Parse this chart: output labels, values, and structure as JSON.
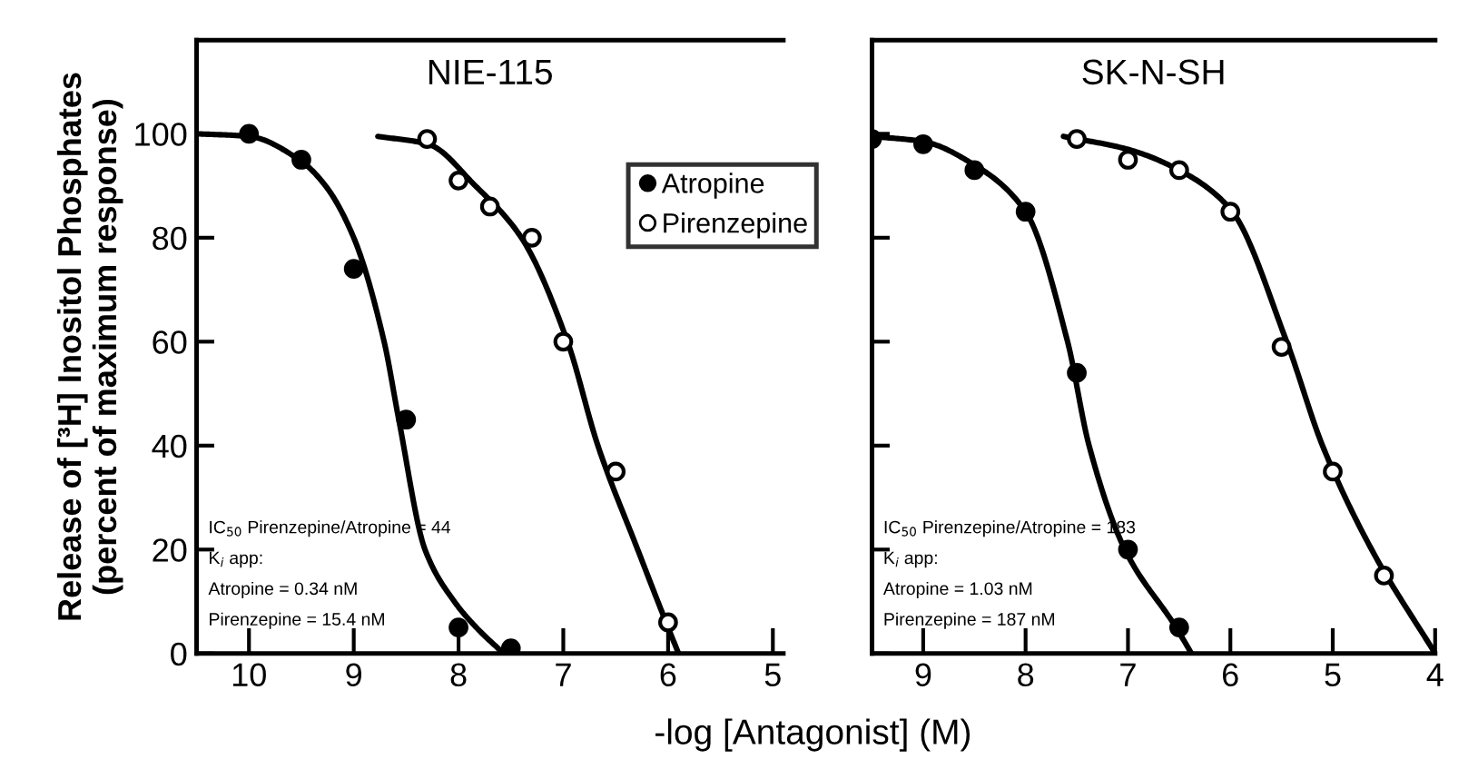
{
  "chart_data": [
    {
      "type": "scatter",
      "title": "NIE-115",
      "ylabel": "Release of [³H] Inositol Phosphates\n(percent of maximum response)",
      "xlabel": "-log [Antagonist] (M)",
      "xlim": [
        10.5,
        4.9
      ],
      "xticks": [
        10,
        9,
        8,
        7,
        6,
        5
      ],
      "ylim": [
        0,
        118
      ],
      "yticks": [
        0,
        20,
        40,
        60,
        80,
        100
      ],
      "grid": false,
      "legend": "top right",
      "annotations": [
        "IC$_{50}$ Pirenzepine/Atropine = 44",
        "K$_{i}$ app:",
        "Atropine = 0.34 nM",
        "Pirenzepine = 15.4 nM"
      ],
      "series": [
        {
          "name": "Atropine",
          "marker": "circle",
          "color": "#000000",
          "x": [
            10.0,
            9.5,
            9.0,
            8.5,
            8.0,
            7.5
          ],
          "values": [
            100,
            95,
            74,
            45,
            5,
            1
          ]
        },
        {
          "name": "Pirenzepine",
          "marker": "circle",
          "color": "#ffffff",
          "x": [
            8.3,
            8.0,
            7.7,
            7.3,
            7.0,
            6.5,
            6.0
          ],
          "values": [
            99,
            91,
            86,
            80,
            60,
            35,
            6
          ]
        },
        {
          "type": "line",
          "marker": "none",
          "line_style": "solid",
          "color": "#000000",
          "x": [
            10.5,
            10.0,
            9.52,
            9.27,
            9.0,
            8.71,
            8.57,
            8.32,
            8.04,
            7.83,
            7.57
          ],
          "values": [
            100,
            99.5,
            95,
            90,
            80,
            60,
            45,
            20,
            10,
            5,
            0
          ]
        },
        {
          "type": "line",
          "marker": "none",
          "line_style": "solid",
          "color": "#000000",
          "x": [
            8.77,
            8.29,
            7.84,
            7.4,
            6.96,
            6.67,
            6.29,
            6.0,
            5.9
          ],
          "values": [
            99.5,
            98,
            90,
            80,
            60,
            40,
            20,
            5,
            0
          ]
        }
      ]
    },
    {
      "type": "scatter",
      "title": "SK-N-SH",
      "xlim": [
        9.5,
        4
      ],
      "xticks": [
        9,
        8,
        7,
        6,
        5,
        4
      ],
      "ylim": [
        0,
        118
      ],
      "yticks": [
        {
          "value": 0,
          "label": null
        },
        {
          "value": 20,
          "label": null
        },
        {
          "value": 40,
          "label": null
        },
        {
          "value": 60,
          "label": null
        },
        {
          "value": 80,
          "label": null
        },
        {
          "value": 100,
          "label": null
        }
      ],
      "grid": false,
      "tick_labels": "x",
      "annotations": [
        "IC$_{50}$ Pirenzepine/Atropine = 183",
        "K$_{i}$ app:",
        "Atropine = 1.03 nM",
        "Pirenzepine = 187 nM"
      ],
      "series": [
        {
          "marker": "circle",
          "color": "#000000",
          "x": [
            9.5,
            9.0,
            8.5,
            8.0,
            7.5,
            7.0,
            6.5
          ],
          "values": [
            99,
            98,
            93,
            85,
            54,
            20,
            5
          ]
        },
        {
          "marker": "circle",
          "color": "#ffffff",
          "x": [
            7.5,
            7.0,
            6.5,
            6.0,
            5.5,
            5.0,
            4.5
          ],
          "values": [
            99,
            95,
            93,
            85,
            59,
            35,
            15
          ]
        },
        {
          "type": "line",
          "marker": "none",
          "line_style": "solid",
          "color": "#000000",
          "x": [
            9.5,
            9.0,
            8.5,
            8.0,
            7.59,
            7.38,
            7.03,
            6.53,
            6.38
          ],
          "values": [
            99.5,
            98.5,
            94,
            85,
            60,
            40,
            20,
            5,
            0
          ]
        },
        {
          "type": "line",
          "marker": "none",
          "line_style": "solid",
          "color": "#000000",
          "x": [
            7.63,
            7.0,
            6.5,
            6.0,
            5.45,
            5.1,
            4.62,
            4.0
          ],
          "values": [
            99.5,
            97,
            93,
            85.5,
            60,
            40,
            20,
            0
          ]
        }
      ]
    }
  ]
}
